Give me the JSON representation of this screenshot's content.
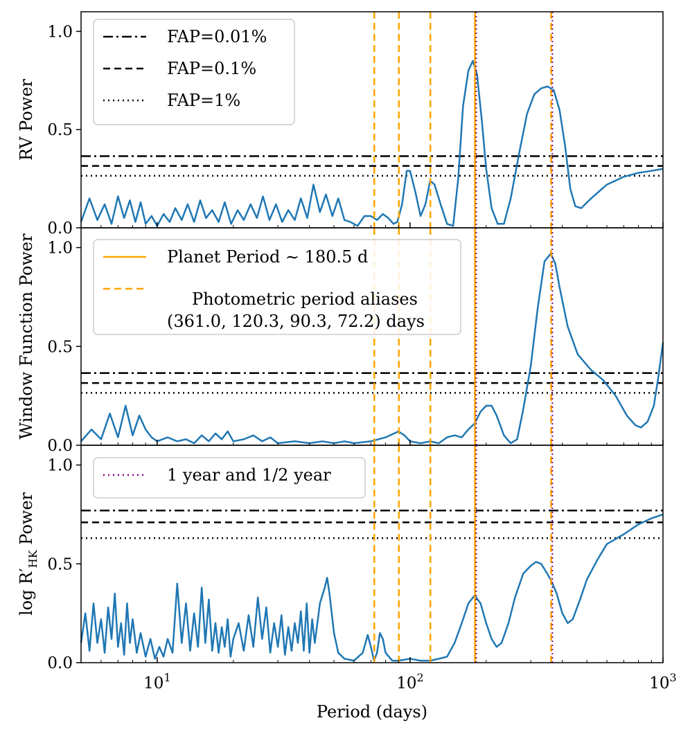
{
  "chart_data": {
    "type": "line",
    "xscale": "log",
    "xlim": [
      5,
      1000
    ],
    "xlabel": "Period (days)",
    "x_ticks": [
      {
        "value": 10,
        "base": "10",
        "exp": "1"
      },
      {
        "value": 100,
        "base": "10",
        "exp": "2"
      },
      {
        "value": 1000,
        "base": "10",
        "exp": "3"
      }
    ],
    "colors": {
      "periodogram": "#1f77b4",
      "planet": "#ffa500",
      "aliases": "#ffa500",
      "year": "#800080",
      "fap": "#000000"
    },
    "planet_period": 180.5,
    "alias_periods": [
      361.0,
      120.3,
      90.3,
      72.2
    ],
    "year_periods": [
      365.25,
      182.6
    ],
    "panels": [
      {
        "id": "rv",
        "ylabel": "RV Power",
        "ylim": [
          0,
          1.1
        ],
        "y_ticks": [
          "0.0",
          "0.5",
          "1.0"
        ],
        "fap_levels": {
          "fap_0_01": 0.365,
          "fap_0_1": 0.315,
          "fap_1": 0.265
        },
        "series": [
          [
            5,
            0.03
          ],
          [
            5.4,
            0.15
          ],
          [
            5.8,
            0.04
          ],
          [
            6.2,
            0.12
          ],
          [
            6.6,
            0.02
          ],
          [
            7,
            0.16
          ],
          [
            7.4,
            0.05
          ],
          [
            7.8,
            0.14
          ],
          [
            8.2,
            0.03
          ],
          [
            8.6,
            0.13
          ],
          [
            9,
            0.02
          ],
          [
            9.5,
            0.06
          ],
          [
            10,
            0.01
          ],
          [
            10.6,
            0.07
          ],
          [
            11.2,
            0.03
          ],
          [
            11.8,
            0.1
          ],
          [
            12.5,
            0.04
          ],
          [
            13.2,
            0.12
          ],
          [
            14,
            0.03
          ],
          [
            14.8,
            0.14
          ],
          [
            15.6,
            0.05
          ],
          [
            16.5,
            0.09
          ],
          [
            17.5,
            0.03
          ],
          [
            18.5,
            0.13
          ],
          [
            19.6,
            0.02
          ],
          [
            20.8,
            0.09
          ],
          [
            22,
            0.04
          ],
          [
            23.4,
            0.12
          ],
          [
            24.8,
            0.05
          ],
          [
            26.2,
            0.16
          ],
          [
            27.8,
            0.04
          ],
          [
            29.5,
            0.12
          ],
          [
            31.2,
            0.03
          ],
          [
            33,
            0.09
          ],
          [
            35,
            0.04
          ],
          [
            37,
            0.15
          ],
          [
            39.2,
            0.05
          ],
          [
            41.5,
            0.22
          ],
          [
            44,
            0.08
          ],
          [
            46.5,
            0.17
          ],
          [
            49.3,
            0.06
          ],
          [
            52,
            0.15
          ],
          [
            55,
            0.04
          ],
          [
            58,
            0.03
          ],
          [
            62,
            0.01
          ],
          [
            66,
            0.06
          ],
          [
            70,
            0.06
          ],
          [
            74,
            0.04
          ],
          [
            78,
            0.07
          ],
          [
            82,
            0.05
          ],
          [
            86,
            0.02
          ],
          [
            89,
            0.03
          ],
          [
            93,
            0.12
          ],
          [
            97,
            0.29
          ],
          [
            100,
            0.29
          ],
          [
            105,
            0.18
          ],
          [
            110,
            0.06
          ],
          [
            115,
            0.12
          ],
          [
            120,
            0.24
          ],
          [
            125,
            0.22
          ],
          [
            132,
            0.12
          ],
          [
            140,
            0.02
          ],
          [
            148,
            0.01
          ],
          [
            155,
            0.25
          ],
          [
            162,
            0.62
          ],
          [
            170,
            0.8
          ],
          [
            177,
            0.85
          ],
          [
            184,
            0.78
          ],
          [
            192,
            0.55
          ],
          [
            200,
            0.3
          ],
          [
            210,
            0.1
          ],
          [
            222,
            0.02
          ],
          [
            235,
            0.02
          ],
          [
            250,
            0.15
          ],
          [
            270,
            0.38
          ],
          [
            290,
            0.58
          ],
          [
            310,
            0.68
          ],
          [
            330,
            0.71
          ],
          [
            350,
            0.72
          ],
          [
            370,
            0.7
          ],
          [
            390,
            0.6
          ],
          [
            410,
            0.42
          ],
          [
            430,
            0.2
          ],
          [
            450,
            0.11
          ],
          [
            475,
            0.1
          ],
          [
            520,
            0.15
          ],
          [
            600,
            0.22
          ],
          [
            700,
            0.26
          ],
          [
            800,
            0.28
          ],
          [
            900,
            0.29
          ],
          [
            1000,
            0.3
          ]
        ]
      },
      {
        "id": "window",
        "ylabel": "Window Function Power",
        "ylim": [
          0,
          1.1
        ],
        "y_ticks": [
          "0.0",
          "0.5",
          "1.0"
        ],
        "fap_levels": {
          "fap_0_01": 0.365,
          "fap_0_1": 0.315,
          "fap_1": 0.265
        },
        "series": [
          [
            5,
            0.02
          ],
          [
            5.5,
            0.08
          ],
          [
            6,
            0.03
          ],
          [
            6.5,
            0.16
          ],
          [
            7,
            0.04
          ],
          [
            7.5,
            0.2
          ],
          [
            8,
            0.05
          ],
          [
            8.5,
            0.15
          ],
          [
            9,
            0.08
          ],
          [
            9.5,
            0.04
          ],
          [
            10,
            0.02
          ],
          [
            11,
            0.04
          ],
          [
            12,
            0.02
          ],
          [
            13,
            0.03
          ],
          [
            14,
            0.01
          ],
          [
            15,
            0.05
          ],
          [
            16,
            0.02
          ],
          [
            17,
            0.06
          ],
          [
            18,
            0.03
          ],
          [
            19,
            0.07
          ],
          [
            20,
            0.02
          ],
          [
            22,
            0.03
          ],
          [
            24,
            0.05
          ],
          [
            26,
            0.02
          ],
          [
            28,
            0.04
          ],
          [
            30,
            0.01
          ],
          [
            35,
            0.02
          ],
          [
            40,
            0.01
          ],
          [
            45,
            0.02
          ],
          [
            50,
            0.01
          ],
          [
            55,
            0.02
          ],
          [
            60,
            0.01
          ],
          [
            70,
            0.02
          ],
          [
            80,
            0.04
          ],
          [
            90,
            0.07
          ],
          [
            95,
            0.05
          ],
          [
            100,
            0.02
          ],
          [
            110,
            0.01
          ],
          [
            120,
            0.02
          ],
          [
            130,
            0.01
          ],
          [
            140,
            0.04
          ],
          [
            150,
            0.05
          ],
          [
            160,
            0.04
          ],
          [
            170,
            0.08
          ],
          [
            180,
            0.11
          ],
          [
            190,
            0.17
          ],
          [
            200,
            0.2
          ],
          [
            210,
            0.2
          ],
          [
            220,
            0.15
          ],
          [
            235,
            0.05
          ],
          [
            250,
            0.01
          ],
          [
            265,
            0.03
          ],
          [
            280,
            0.18
          ],
          [
            300,
            0.4
          ],
          [
            320,
            0.7
          ],
          [
            340,
            0.93
          ],
          [
            360,
            0.97
          ],
          [
            375,
            0.92
          ],
          [
            390,
            0.8
          ],
          [
            420,
            0.6
          ],
          [
            460,
            0.46
          ],
          [
            520,
            0.38
          ],
          [
            580,
            0.33
          ],
          [
            650,
            0.25
          ],
          [
            720,
            0.15
          ],
          [
            780,
            0.1
          ],
          [
            820,
            0.09
          ],
          [
            870,
            0.12
          ],
          [
            920,
            0.2
          ],
          [
            960,
            0.35
          ],
          [
            1000,
            0.52
          ]
        ]
      },
      {
        "id": "rhk",
        "ylabel": "log R′",
        "ylabel_sub": "HK",
        "ylabel_suffix": " Power",
        "ylim": [
          0,
          1.1
        ],
        "y_ticks": [
          "0.0",
          "0.5",
          "1.0"
        ],
        "fap_levels": {
          "fap_0_01": 0.77,
          "fap_0_1": 0.71,
          "fap_1": 0.63
        },
        "series": [
          [
            5,
            0.1
          ],
          [
            5.2,
            0.25
          ],
          [
            5.4,
            0.06
          ],
          [
            5.6,
            0.3
          ],
          [
            5.8,
            0.1
          ],
          [
            6,
            0.22
          ],
          [
            6.2,
            0.05
          ],
          [
            6.4,
            0.28
          ],
          [
            6.6,
            0.12
          ],
          [
            6.8,
            0.35
          ],
          [
            7,
            0.08
          ],
          [
            7.2,
            0.2
          ],
          [
            7.4,
            0.04
          ],
          [
            7.6,
            0.3
          ],
          [
            7.8,
            0.1
          ],
          [
            8,
            0.22
          ],
          [
            8.3,
            0.05
          ],
          [
            8.6,
            0.15
          ],
          [
            9,
            0.03
          ],
          [
            9.4,
            0.12
          ],
          [
            9.8,
            0.02
          ],
          [
            10.2,
            0.08
          ],
          [
            10.6,
            0.03
          ],
          [
            11,
            0.12
          ],
          [
            11.5,
            0.05
          ],
          [
            12,
            0.4
          ],
          [
            12.5,
            0.1
          ],
          [
            13,
            0.3
          ],
          [
            13.5,
            0.06
          ],
          [
            14,
            0.25
          ],
          [
            14.5,
            0.08
          ],
          [
            15,
            0.38
          ],
          [
            15.5,
            0.1
          ],
          [
            16,
            0.32
          ],
          [
            16.5,
            0.06
          ],
          [
            17,
            0.2
          ],
          [
            17.5,
            0.05
          ],
          [
            18,
            0.18
          ],
          [
            18.5,
            0.08
          ],
          [
            19,
            0.22
          ],
          [
            19.5,
            0.03
          ],
          [
            20,
            0.12
          ],
          [
            21,
            0.2
          ],
          [
            22,
            0.06
          ],
          [
            23,
            0.24
          ],
          [
            24,
            0.08
          ],
          [
            25,
            0.33
          ],
          [
            26,
            0.12
          ],
          [
            27,
            0.28
          ],
          [
            28,
            0.05
          ],
          [
            29,
            0.2
          ],
          [
            30,
            0.08
          ],
          [
            31,
            0.24
          ],
          [
            32,
            0.04
          ],
          [
            33,
            0.18
          ],
          [
            34,
            0.06
          ],
          [
            35,
            0.2
          ],
          [
            36,
            0.1
          ],
          [
            37,
            0.26
          ],
          [
            38,
            0.06
          ],
          [
            39,
            0.3
          ],
          [
            40,
            0.05
          ],
          [
            41,
            0.22
          ],
          [
            42,
            0.1
          ],
          [
            44,
            0.3
          ],
          [
            46,
            0.38
          ],
          [
            47,
            0.43
          ],
          [
            48,
            0.35
          ],
          [
            50,
            0.15
          ],
          [
            52,
            0.05
          ],
          [
            55,
            0.02
          ],
          [
            60,
            0.01
          ],
          [
            65,
            0.05
          ],
          [
            68,
            0.14
          ],
          [
            70,
            0.08
          ],
          [
            72,
            0.01
          ],
          [
            74,
            0.05
          ],
          [
            76,
            0.15
          ],
          [
            78,
            0.12
          ],
          [
            80,
            0.05
          ],
          [
            85,
            0.01
          ],
          [
            90,
            0.01
          ],
          [
            100,
            0.02
          ],
          [
            110,
            0.01
          ],
          [
            120,
            0.01
          ],
          [
            130,
            0.02
          ],
          [
            140,
            0.03
          ],
          [
            150,
            0.1
          ],
          [
            160,
            0.2
          ],
          [
            170,
            0.3
          ],
          [
            180,
            0.34
          ],
          [
            190,
            0.3
          ],
          [
            200,
            0.2
          ],
          [
            210,
            0.12
          ],
          [
            220,
            0.08
          ],
          [
            230,
            0.1
          ],
          [
            245,
            0.2
          ],
          [
            260,
            0.33
          ],
          [
            280,
            0.45
          ],
          [
            300,
            0.49
          ],
          [
            315,
            0.51
          ],
          [
            330,
            0.5
          ],
          [
            345,
            0.46
          ],
          [
            360,
            0.42
          ],
          [
            380,
            0.35
          ],
          [
            400,
            0.25
          ],
          [
            420,
            0.2
          ],
          [
            440,
            0.22
          ],
          [
            470,
            0.32
          ],
          [
            500,
            0.42
          ],
          [
            550,
            0.52
          ],
          [
            600,
            0.6
          ],
          [
            700,
            0.65
          ],
          [
            800,
            0.7
          ],
          [
            900,
            0.73
          ],
          [
            1000,
            0.75
          ]
        ]
      }
    ],
    "legends": [
      {
        "panel": 0,
        "entries": [
          {
            "style": "dashdot",
            "color": "#000000",
            "label": "FAP=0.01%"
          },
          {
            "style": "dashed",
            "color": "#000000",
            "label": "FAP=0.1%"
          },
          {
            "style": "dotted",
            "color": "#000000",
            "label": "FAP=1%"
          }
        ]
      },
      {
        "panel": 1,
        "entries": [
          {
            "style": "solid",
            "color": "#ffa500",
            "label": "Planet Period ∼ 180.5 d"
          },
          {
            "style": "dashed",
            "color": "#ffa500",
            "label": "Photometric period aliases",
            "label2": "(361.0, 120.3, 90.3, 72.2) days"
          }
        ]
      },
      {
        "panel": 2,
        "entries": [
          {
            "style": "dotted",
            "color": "#800080",
            "label": "1 year and 1/2 year"
          }
        ]
      }
    ]
  }
}
